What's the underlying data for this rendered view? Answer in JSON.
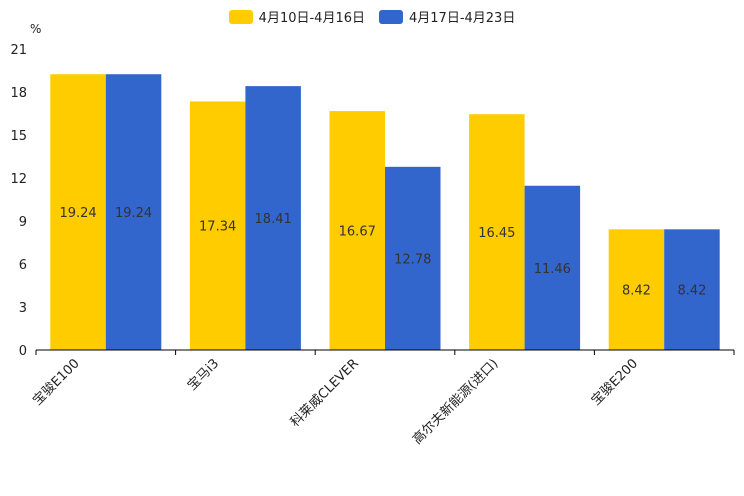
{
  "chart_data": {
    "type": "bar",
    "unit": "%",
    "categories": [
      "宝骏E100",
      "宝马i3",
      "科莱威CLEVER",
      "高尔夫新能源(进口)",
      "宝骏E200"
    ],
    "series": [
      {
        "name": "4月10日-4月16日",
        "color": "#ffcc00",
        "values": [
          19.24,
          17.34,
          16.67,
          16.45,
          8.42
        ]
      },
      {
        "name": "4月17日-4月23日",
        "color": "#3366cc",
        "values": [
          19.24,
          18.41,
          12.78,
          11.46,
          8.42
        ]
      }
    ],
    "ylim": [
      0,
      21
    ],
    "yticks": [
      0,
      3,
      6,
      9,
      12,
      15,
      18,
      21
    ],
    "legend_position": "top-center",
    "grid": false
  }
}
